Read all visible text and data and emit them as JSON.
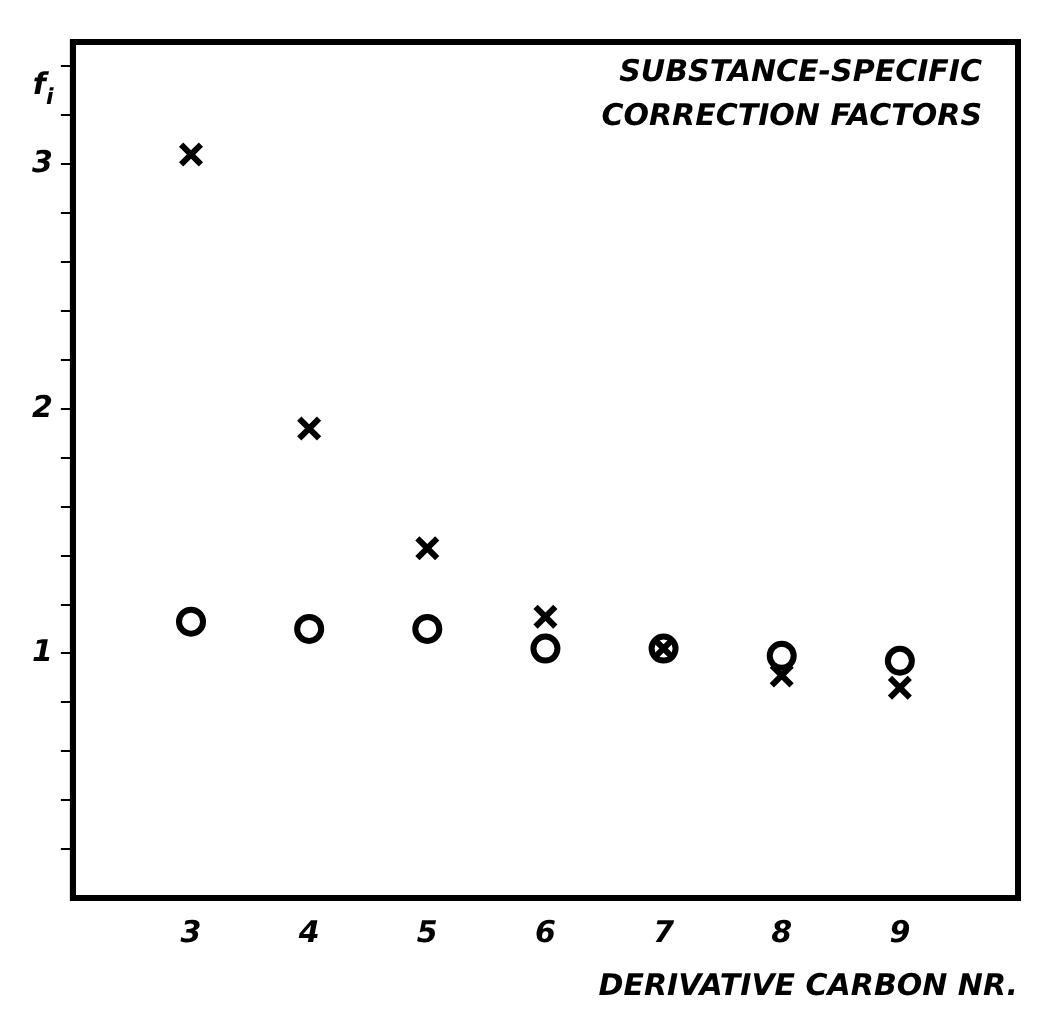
{
  "chart_data": {
    "type": "scatter",
    "title": "SUBSTANCE-SPECIFIC CORRECTION FACTORS",
    "xlabel": "DERIVATIVE CARBON NR.",
    "ylabel": "f$_{i}$",
    "x": [
      3,
      4,
      5,
      6,
      7,
      8,
      9
    ],
    "series": [
      {
        "color": "#000000",
        "marker": "cross",
        "values": [
          3.04,
          1.92,
          1.43,
          1.15,
          1.02,
          0.91,
          0.86
        ]
      },
      {
        "color": "#000000",
        "marker": "circle",
        "values": [
          1.13,
          1.1,
          1.1,
          1.02,
          1.02,
          0.99,
          0.97
        ]
      }
    ],
    "xlim": [
      2,
      10
    ],
    "xticks": [
      {
        "value": 3,
        "label": "3"
      },
      {
        "value": 4,
        "label": "4"
      },
      {
        "value": 5,
        "label": "5"
      },
      {
        "value": 6,
        "label": "6"
      },
      {
        "value": 7,
        "label": "7"
      },
      {
        "value": 8,
        "label": "8"
      },
      {
        "value": 9,
        "label": "9"
      }
    ],
    "ylim": [
      0,
      3.5
    ],
    "yticks": [
      {
        "value": 0.2,
        "label": null
      },
      {
        "value": 0.4,
        "label": null
      },
      {
        "value": 0.6,
        "label": null
      },
      {
        "value": 0.8,
        "label": null
      },
      1,
      {
        "value": 1.2,
        "label": null
      },
      {
        "value": 1.4,
        "label": null
      },
      {
        "value": 1.6,
        "label": null
      },
      {
        "value": 1.8,
        "label": null
      },
      2,
      {
        "value": 2.2,
        "label": null
      },
      {
        "value": 2.4,
        "label": null
      },
      {
        "value": 2.6,
        "label": null
      },
      {
        "value": 2.8,
        "label": null
      },
      3,
      {
        "value": 3.2,
        "label": null
      },
      {
        "value": 3.4,
        "label": null
      }
    ],
    "grid": false,
    "legend": false
  }
}
